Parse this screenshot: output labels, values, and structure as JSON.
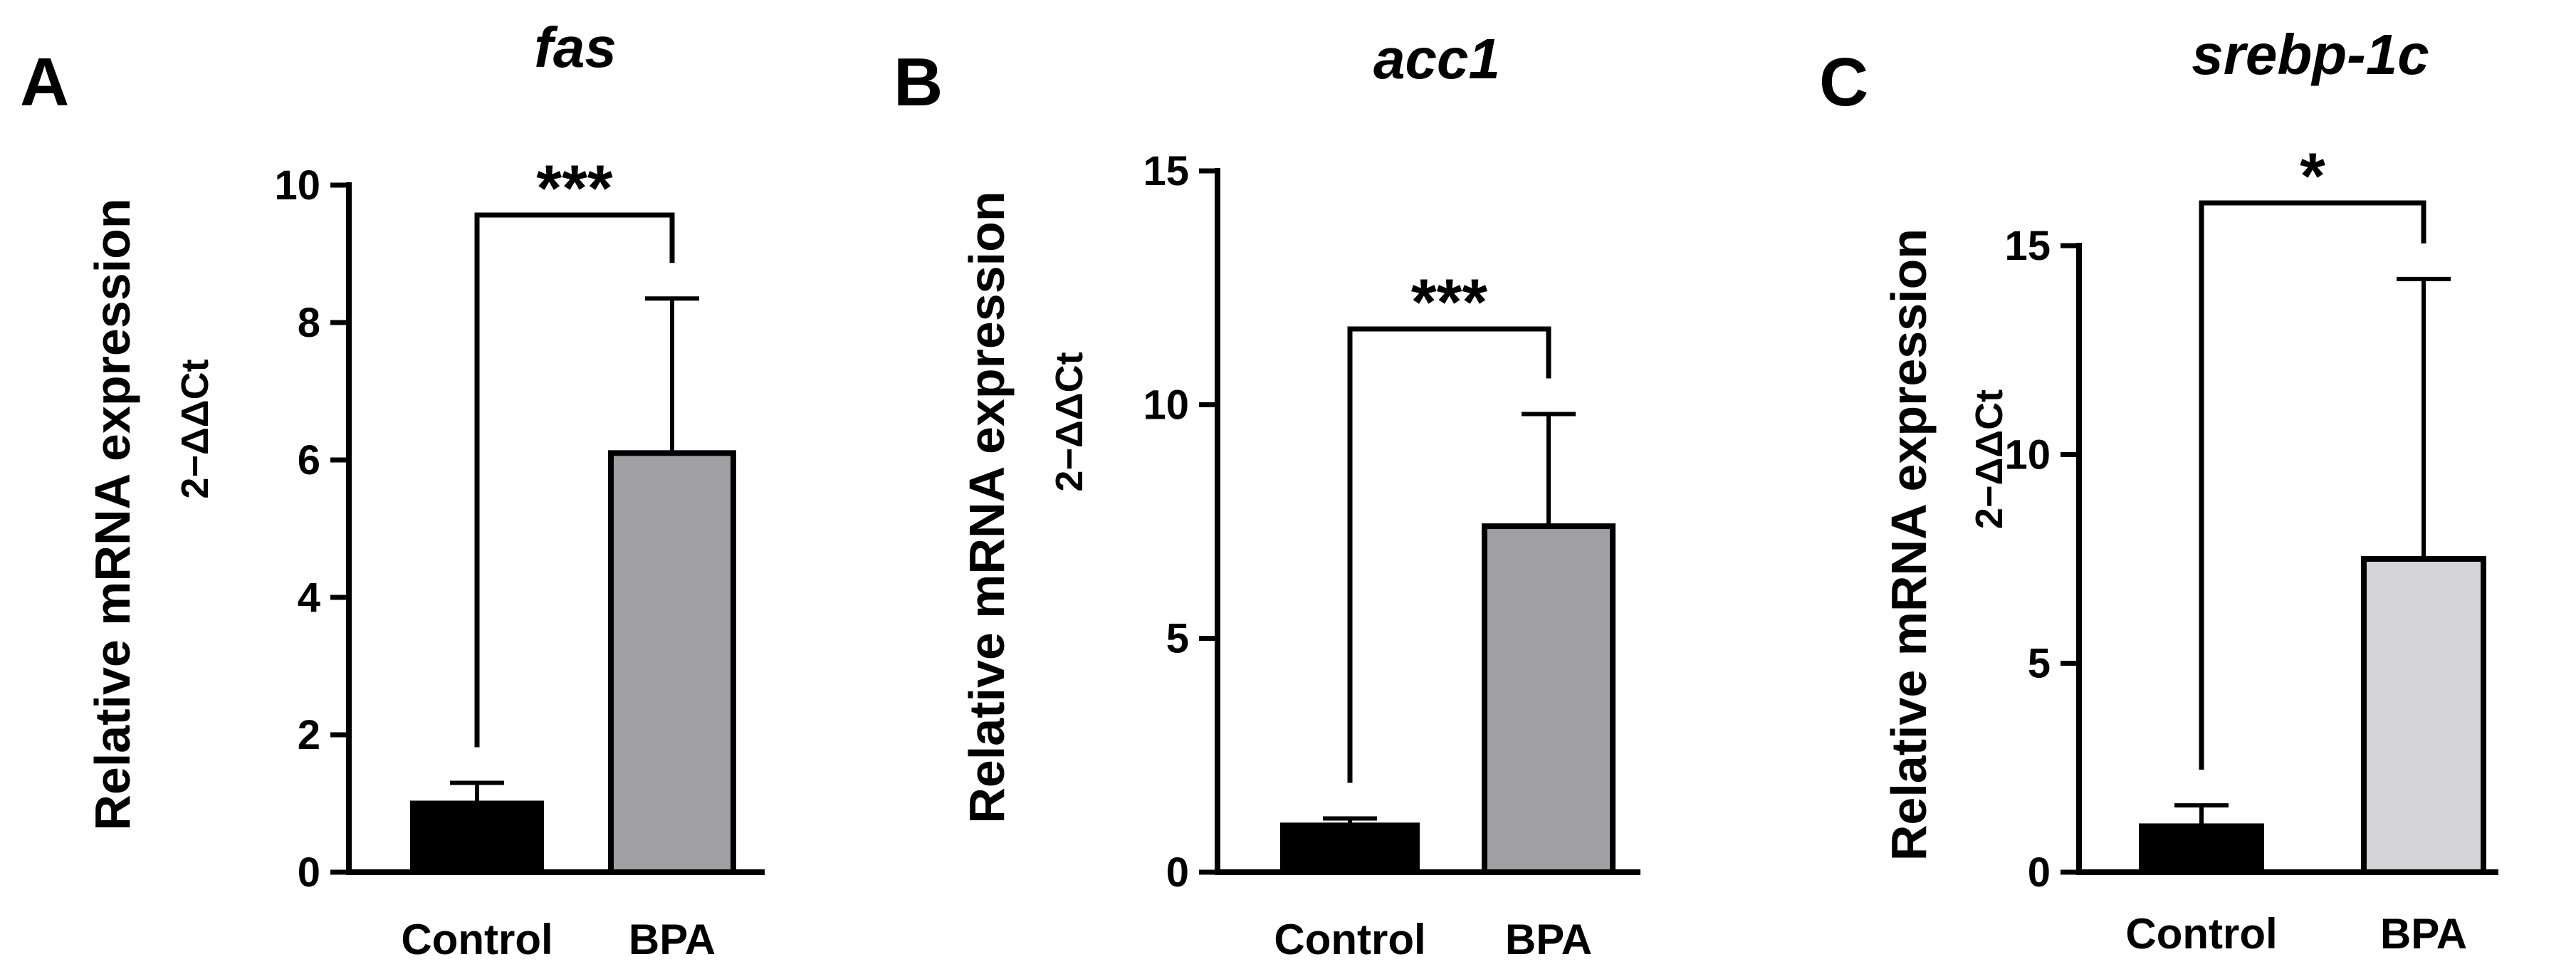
{
  "chart_data": [
    {
      "type": "bar",
      "panel": "A",
      "title": "fas",
      "ylabel": "Relative mRNA expression",
      "ylabel2": "2−ΔΔCt",
      "categories": [
        "Control",
        "BPA"
      ],
      "values": [
        1.0,
        6.1
      ],
      "errors": [
        0.3,
        2.25
      ],
      "colors": [
        "#000000",
        "#a0a0a4"
      ],
      "ylim": [
        0,
        10
      ],
      "yticks": [
        0,
        2,
        4,
        6,
        8,
        10
      ],
      "significance": "***"
    },
    {
      "type": "bar",
      "panel": "B",
      "title": "acc1",
      "ylabel": "Relative mRNA expression",
      "ylabel2": "2−ΔΔCt",
      "categories": [
        "Control",
        "BPA"
      ],
      "values": [
        1.0,
        7.4
      ],
      "errors": [
        0.15,
        2.4
      ],
      "colors": [
        "#000000",
        "#a0a0a4"
      ],
      "ylim": [
        0,
        15
      ],
      "yticks": [
        0,
        5,
        10,
        15
      ],
      "significance": "***"
    },
    {
      "type": "bar",
      "panel": "C",
      "title": "srebp-1c",
      "ylabel": "Relative mRNA expression",
      "ylabel2": "2−ΔΔCt",
      "categories": [
        "Control",
        "BPA"
      ],
      "values": [
        1.1,
        7.5
      ],
      "errors": [
        0.5,
        6.7
      ],
      "colors": [
        "#000000",
        "#d4d4d6"
      ],
      "ylim": [
        0,
        15
      ],
      "yticks": [
        0,
        5,
        10,
        15
      ],
      "significance": "*"
    }
  ]
}
